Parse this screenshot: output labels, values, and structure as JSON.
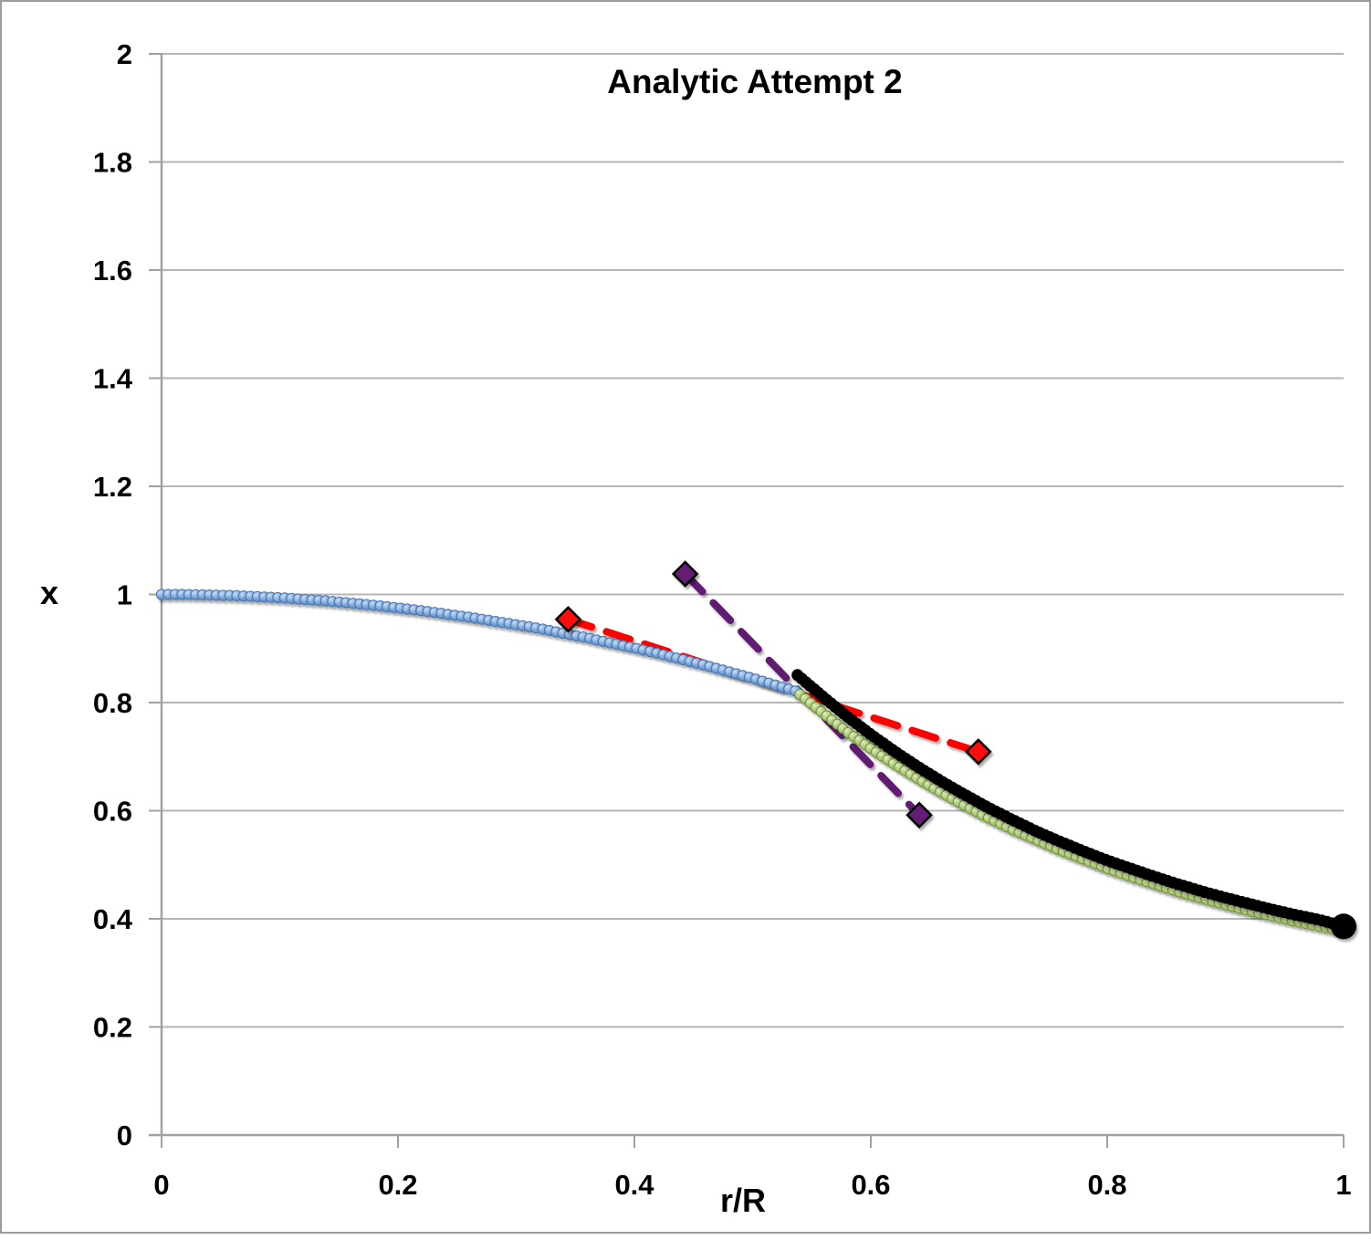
{
  "window": {
    "background": "#ffffff",
    "border_color": "#9b9b9b"
  },
  "chart_data": {
    "type": "line",
    "title": "Analytic Attempt 2",
    "xlabel": "r/R",
    "ylabel": "x",
    "xlim": [
      0,
      1
    ],
    "ylim": [
      0,
      2
    ],
    "grid": "horizontal",
    "legend": "none",
    "xticks": [
      0,
      0.2,
      0.4,
      0.6,
      0.8,
      1
    ],
    "xtick_labels": [
      "0",
      "0.2",
      "0.4",
      "0.6",
      "0.8",
      "1"
    ],
    "yticks": [
      0,
      0.2,
      0.4,
      0.6,
      0.8,
      1,
      1.2,
      1.4,
      1.6,
      1.8,
      2
    ],
    "ytick_labels": [
      "0",
      "0.2",
      "0.4",
      "0.6",
      "0.8",
      "1",
      "1.2",
      "1.4",
      "1.6",
      "1.8",
      "2"
    ],
    "style": {
      "axis_color": "#a0a0a0",
      "grid_color": "#b5b5b5",
      "text_color": "#000000"
    },
    "series": [
      {
        "name": "red-dashed-approx",
        "kind": "dashed-diamond",
        "line_color": "#ff0000",
        "marker_fill": "#ff0707",
        "marker_stroke": "#000000",
        "points": [
          [
            0.344,
            0.954
          ],
          [
            0.691,
            0.709
          ]
        ]
      },
      {
        "name": "purple-dashed-approx",
        "kind": "dashed-diamond",
        "line_color": "#5e1a70",
        "marker_fill": "#651e75",
        "marker_stroke": "#000000",
        "points": [
          [
            0.443,
            1.038
          ],
          [
            0.641,
            0.592
          ]
        ]
      },
      {
        "name": "blue-inner-solution",
        "kind": "bead",
        "bead_fill": "#7aa7dc",
        "bead_highlight": "#cadef5",
        "bead_edge": "#4874ac",
        "points": [
          [
            0,
            1.0
          ],
          [
            0.02,
            1.0
          ],
          [
            0.04,
            0.999
          ],
          [
            0.06,
            0.998
          ],
          [
            0.08,
            0.996
          ],
          [
            0.1,
            0.994
          ],
          [
            0.12,
            0.991
          ],
          [
            0.14,
            0.988
          ],
          [
            0.16,
            0.984
          ],
          [
            0.18,
            0.98
          ],
          [
            0.2,
            0.975
          ],
          [
            0.22,
            0.97
          ],
          [
            0.24,
            0.964
          ],
          [
            0.26,
            0.958
          ],
          [
            0.28,
            0.951
          ],
          [
            0.3,
            0.944
          ],
          [
            0.32,
            0.937
          ],
          [
            0.34,
            0.928
          ],
          [
            0.36,
            0.92
          ],
          [
            0.38,
            0.91
          ],
          [
            0.4,
            0.901
          ],
          [
            0.42,
            0.891
          ],
          [
            0.44,
            0.88
          ],
          [
            0.46,
            0.869
          ],
          [
            0.48,
            0.857
          ],
          [
            0.5,
            0.845
          ],
          [
            0.52,
            0.832
          ],
          [
            0.54,
            0.819
          ]
        ]
      },
      {
        "name": "green-outer-solution",
        "kind": "bead",
        "bead_fill": "#aecb77",
        "bead_highlight": "#e0ebc4",
        "bead_edge": "#74923d",
        "points": [
          [
            0.54,
            0.815
          ],
          [
            0.56,
            0.78
          ],
          [
            0.58,
            0.746
          ],
          [
            0.6,
            0.715
          ],
          [
            0.62,
            0.686
          ],
          [
            0.64,
            0.659
          ],
          [
            0.66,
            0.633
          ],
          [
            0.68,
            0.609
          ],
          [
            0.7,
            0.586
          ],
          [
            0.72,
            0.565
          ],
          [
            0.74,
            0.546
          ],
          [
            0.76,
            0.527
          ],
          [
            0.78,
            0.51
          ],
          [
            0.8,
            0.493
          ],
          [
            0.82,
            0.478
          ],
          [
            0.84,
            0.464
          ],
          [
            0.86,
            0.45
          ],
          [
            0.88,
            0.438
          ],
          [
            0.9,
            0.426
          ],
          [
            0.92,
            0.415
          ],
          [
            0.94,
            0.405
          ],
          [
            0.96,
            0.395
          ],
          [
            0.98,
            0.386
          ],
          [
            1.0,
            0.377
          ]
        ]
      },
      {
        "name": "black-outer-solution",
        "kind": "thick-black",
        "line_color": "#050505",
        "end_dot": true,
        "points": [
          [
            0.538,
            0.851
          ],
          [
            0.56,
            0.81
          ],
          [
            0.58,
            0.774
          ],
          [
            0.6,
            0.741
          ],
          [
            0.62,
            0.71
          ],
          [
            0.64,
            0.681
          ],
          [
            0.66,
            0.654
          ],
          [
            0.68,
            0.629
          ],
          [
            0.7,
            0.605
          ],
          [
            0.72,
            0.583
          ],
          [
            0.74,
            0.562
          ],
          [
            0.76,
            0.543
          ],
          [
            0.78,
            0.525
          ],
          [
            0.8,
            0.508
          ],
          [
            0.82,
            0.493
          ],
          [
            0.84,
            0.478
          ],
          [
            0.86,
            0.464
          ],
          [
            0.88,
            0.451
          ],
          [
            0.9,
            0.439
          ],
          [
            0.92,
            0.428
          ],
          [
            0.94,
            0.417
          ],
          [
            0.96,
            0.407
          ],
          [
            0.98,
            0.398
          ],
          [
            1.0,
            0.386
          ]
        ]
      }
    ]
  }
}
